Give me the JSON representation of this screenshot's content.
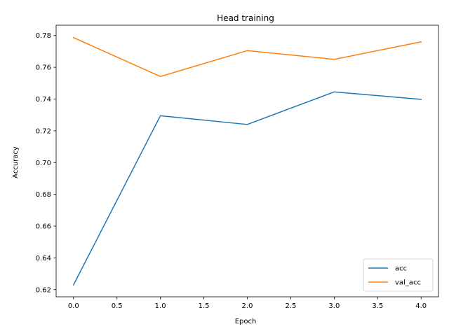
{
  "chart_data": {
    "type": "line",
    "title": "Head training",
    "xlabel": "Epoch",
    "ylabel": "Accuracy",
    "x": [
      0,
      1,
      2,
      3,
      4
    ],
    "xlim": [
      -0.2,
      4.2
    ],
    "ylim": [
      0.6155,
      0.7865
    ],
    "xticks": [
      0.0,
      0.5,
      1.0,
      1.5,
      2.0,
      2.5,
      3.0,
      3.5,
      4.0
    ],
    "xtick_labels": [
      "0.0",
      "0.5",
      "1.0",
      "1.5",
      "2.0",
      "2.5",
      "3.0",
      "3.5",
      "4.0"
    ],
    "yticks": [
      0.62,
      0.64,
      0.66,
      0.68,
      0.7,
      0.72,
      0.74,
      0.76,
      0.78
    ],
    "ytick_labels": [
      "0.62",
      "0.64",
      "0.66",
      "0.68",
      "0.70",
      "0.72",
      "0.74",
      "0.76",
      "0.78"
    ],
    "grid": false,
    "legend_position": "bottom-right",
    "series": [
      {
        "name": "acc",
        "color": "#1f77b4",
        "values": [
          0.623,
          0.7295,
          0.724,
          0.7445,
          0.7398
        ]
      },
      {
        "name": "val_acc",
        "color": "#ff7f0e",
        "values": [
          0.7787,
          0.7542,
          0.7705,
          0.765,
          0.776
        ]
      }
    ]
  }
}
